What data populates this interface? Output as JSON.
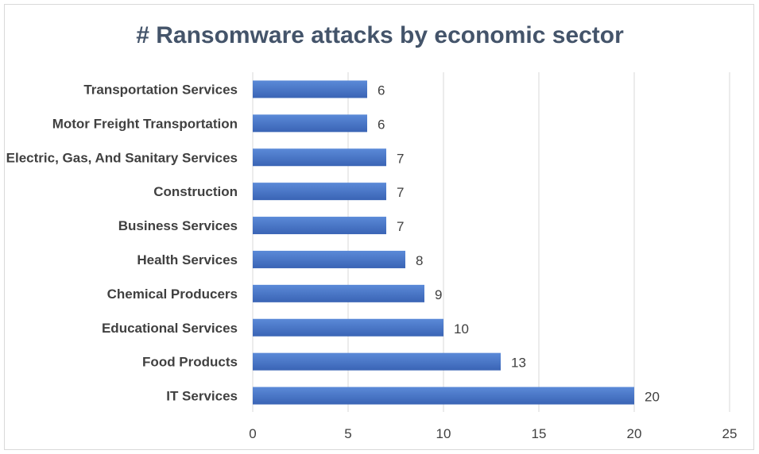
{
  "chart_data": {
    "type": "bar",
    "orientation": "horizontal",
    "title": "# Ransomware attacks by economic sector",
    "categories": [
      "Transportation Services",
      "Motor Freight Transportation",
      "Electric, Gas, And Sanitary Services",
      "Construction",
      "Business Services",
      "Health Services",
      "Chemical Producers",
      "Educational Services",
      "Food Products",
      "IT Services"
    ],
    "values": [
      6,
      6,
      7,
      7,
      7,
      8,
      9,
      10,
      13,
      20
    ],
    "xlim": [
      0,
      25
    ],
    "xticks": [
      0,
      5,
      10,
      15,
      20,
      25
    ],
    "grid": true,
    "legend": "none",
    "bar_color": "#4472c4",
    "bar_color_light": "#5b8ad8",
    "gridline_color": "#d9d9d9",
    "title_color": "#44546a"
  }
}
